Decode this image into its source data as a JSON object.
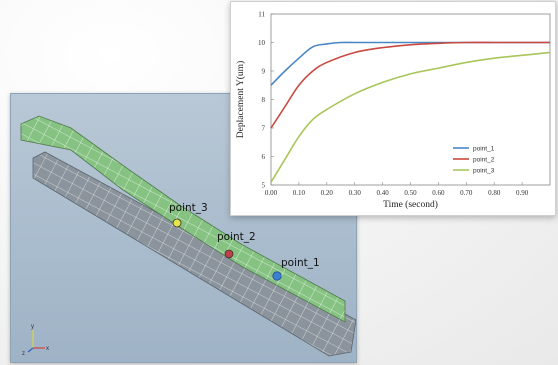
{
  "chart_data": {
    "type": "line",
    "title": "",
    "xlabel": "Time (second)",
    "ylabel": "Deplacement Y(um)",
    "xlim": [
      0,
      1.0
    ],
    "ylim": [
      5,
      11
    ],
    "xticks": [
      "0.00",
      "0.10",
      "0.20",
      "0.30",
      "0.40",
      "0.50",
      "0.60",
      "0.70",
      "0.80",
      "0.90"
    ],
    "yticks": [
      "5",
      "6",
      "7",
      "8",
      "9",
      "10",
      "11"
    ],
    "grid": false,
    "legend_position": "bottom-right",
    "series": [
      {
        "name": "point_1",
        "color": "#4a86c6",
        "x": [
          0,
          0.05,
          0.1,
          0.15,
          0.2,
          0.25,
          0.3,
          0.4,
          0.5,
          0.6,
          0.7,
          0.8,
          0.9,
          1.0
        ],
        "y": [
          8.5,
          9.0,
          9.45,
          9.85,
          9.95,
          10.0,
          10.0,
          10.0,
          10.0,
          10.0,
          10.0,
          10.0,
          10.0,
          10.0
        ]
      },
      {
        "name": "point_2",
        "color": "#c84a40",
        "x": [
          0,
          0.05,
          0.1,
          0.15,
          0.2,
          0.3,
          0.4,
          0.5,
          0.6,
          0.7,
          0.8,
          0.9,
          1.0
        ],
        "y": [
          7.0,
          7.75,
          8.5,
          9.0,
          9.3,
          9.65,
          9.82,
          9.92,
          9.97,
          10.0,
          10.0,
          10.0,
          10.0
        ]
      },
      {
        "name": "point_3",
        "color": "#a9c65a",
        "x": [
          0,
          0.05,
          0.1,
          0.15,
          0.2,
          0.3,
          0.4,
          0.5,
          0.6,
          0.7,
          0.8,
          0.9,
          1.0
        ],
        "y": [
          5.1,
          5.9,
          6.7,
          7.3,
          7.65,
          8.2,
          8.6,
          8.9,
          9.1,
          9.3,
          9.45,
          9.55,
          9.65
        ]
      }
    ]
  },
  "viewport": {
    "point_labels": [
      "point_3",
      "point_2",
      "point_1"
    ],
    "marker_colors": [
      "#e6e64a",
      "#c0404a",
      "#3d7fd4"
    ],
    "axis_triad": {
      "y": "y",
      "x": "x",
      "z": "z"
    }
  }
}
